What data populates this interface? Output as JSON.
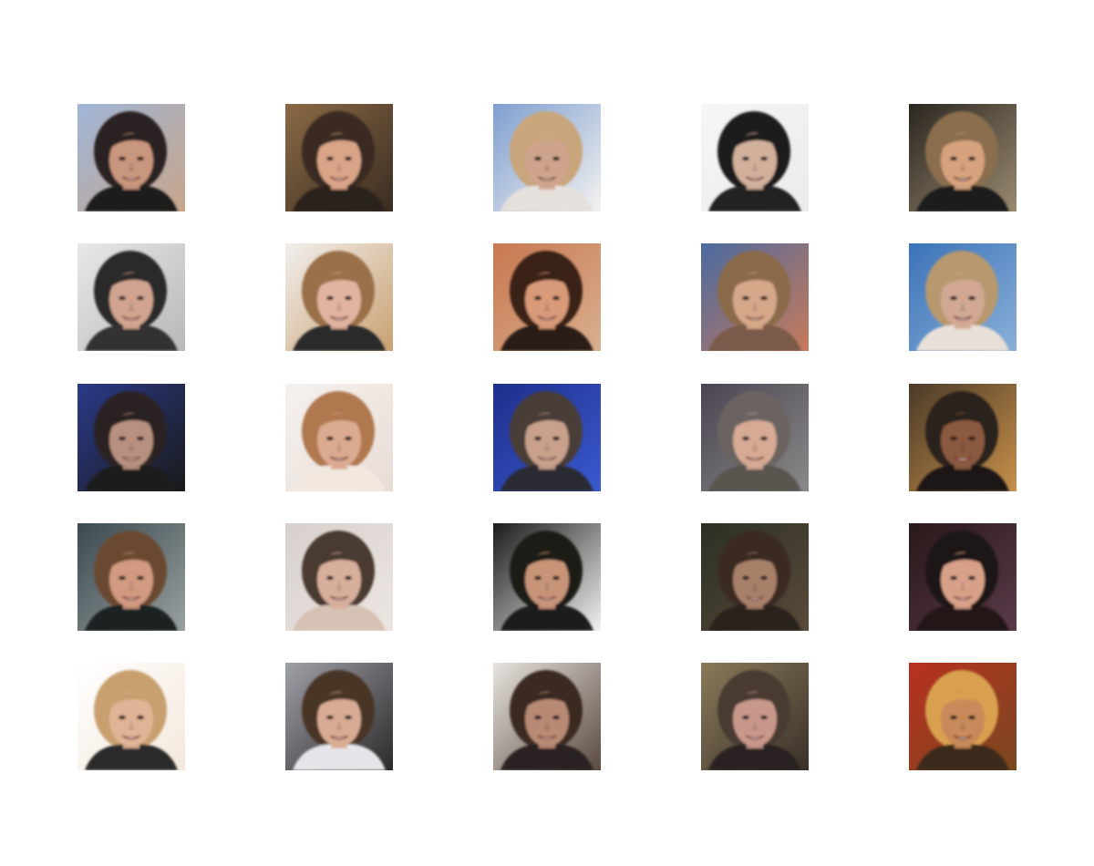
{
  "figure": {
    "rows": 5,
    "cols": 5,
    "tiles": [
      {
        "bg": "#9fb6d8",
        "bg2": "#c8a58a",
        "hair": "#2a2420",
        "skin": "#c9967e",
        "shirt": "#1c1c1c"
      },
      {
        "bg": "#8a6a45",
        "bg2": "#3a2c22",
        "hair": "#3b2a22",
        "skin": "#d9a488",
        "shirt": "#2a201c"
      },
      {
        "bg": "#7f9fd0",
        "bg2": "#f4f2f0",
        "hair": "#c9a57c",
        "skin": "#cfa48e",
        "shirt": "#e6e0dc"
      },
      {
        "bg": "#f6f6f6",
        "bg2": "#ebebeb",
        "hair": "#1c1c1c",
        "skin": "#d1b09c",
        "shirt": "#222222"
      },
      {
        "bg": "#2a2620",
        "bg2": "#9a8a70",
        "hair": "#8a6e4e",
        "skin": "#d6a37e",
        "shirt": "#1e1c1a"
      },
      {
        "bg": "#e8e8e8",
        "bg2": "#b8b8b8",
        "hair": "#2a2a2a",
        "skin": "#d0a490",
        "shirt": "#333333"
      },
      {
        "bg": "#f2f0ee",
        "bg2": "#c8a070",
        "hair": "#9a7048",
        "skin": "#e0b4a0",
        "shirt": "#2a2a2a"
      },
      {
        "bg": "#c87850",
        "bg2": "#d9b090",
        "hair": "#3a2418",
        "skin": "#d89a78",
        "shirt": "#2a1a14"
      },
      {
        "bg": "#4a6aa0",
        "bg2": "#c87a5a",
        "hair": "#8a6a4a",
        "skin": "#d6a88a",
        "shirt": "#7a5a48"
      },
      {
        "bg": "#3a72b8",
        "bg2": "#8ab0d8",
        "hair": "#b8986e",
        "skin": "#d2a894",
        "shirt": "#e8e0d8"
      },
      {
        "bg": "#2a3a88",
        "bg2": "#1a1a1a",
        "hair": "#2a2422",
        "skin": "#b89080",
        "shirt": "#1a1a1a"
      },
      {
        "bg": "#f6f2f0",
        "bg2": "#e8dcd4",
        "hair": "#b07850",
        "skin": "#dcaa90",
        "shirt": "#f2e8e0"
      },
      {
        "bg": "#1e2e8a",
        "bg2": "#3a5ad0",
        "hair": "#4a3e38",
        "skin": "#c8a08c",
        "shirt": "#2a2a30"
      },
      {
        "bg": "#4a4450",
        "bg2": "#8a8a8a",
        "hair": "#6a6462",
        "skin": "#d6aa94",
        "shirt": "#5a5450"
      },
      {
        "bg": "#4a3a28",
        "bg2": "#c8904a",
        "hair": "#2a201a",
        "skin": "#8a5a40",
        "shirt": "#1e1812"
      },
      {
        "bg": "#3a4a50",
        "bg2": "#9aa0a0",
        "hair": "#6a4a30",
        "skin": "#d29a80",
        "shirt": "#1e2224"
      },
      {
        "bg": "#d8d0cc",
        "bg2": "#ece6e2",
        "hair": "#4a3a32",
        "skin": "#d8ae9c",
        "shirt": "#d6c2b4"
      },
      {
        "bg": "#1a1a1a",
        "bg2": "#f2f2f2",
        "hair": "#1e1a18",
        "skin": "#c89478",
        "shirt": "#1a1a1a"
      },
      {
        "bg": "#2a3024",
        "bg2": "#5a4a3a",
        "hair": "#3a2a22",
        "skin": "#a8806a",
        "shirt": "#2a241e"
      },
      {
        "bg": "#281818",
        "bg2": "#5a3a4a",
        "hair": "#1a1414",
        "skin": "#d8a088",
        "shirt": "#241616"
      },
      {
        "bg": "#ffffff",
        "bg2": "#f4e8dc",
        "hair": "#c8a070",
        "skin": "#e0b496",
        "shirt": "#2a2a2a"
      },
      {
        "bg": "#a0a0a8",
        "bg2": "#2a2a2a",
        "hair": "#4a3428",
        "skin": "#d8ac94",
        "shirt": "#e6e6ea"
      },
      {
        "bg": "#e8e4e0",
        "bg2": "#5a4a40",
        "hair": "#3a2a20",
        "skin": "#b88a74",
        "shirt": "#2a2420"
      },
      {
        "bg": "#8a7a5a",
        "bg2": "#3a3028",
        "hair": "#4a3a30",
        "skin": "#c8988a",
        "shirt": "#2a2420"
      },
      {
        "bg": "#b83020",
        "bg2": "#7a4820",
        "hair": "#d8a050",
        "skin": "#c88a5a",
        "shirt": "#3a2a1a"
      }
    ]
  }
}
